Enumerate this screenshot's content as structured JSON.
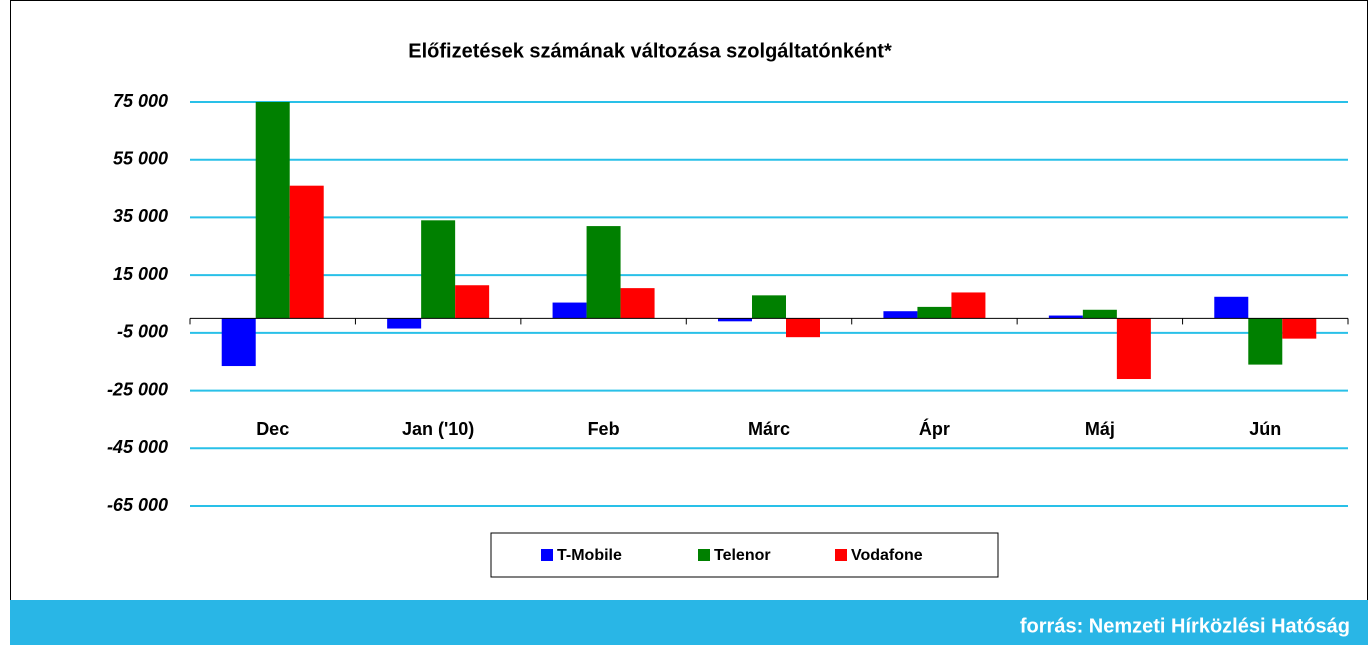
{
  "chart_data": {
    "type": "bar",
    "title": "Előfizetések számának változása szolgáltatónként*",
    "source": "forrás: Nemzeti Hírközlési Hatóság",
    "categories": [
      "Dec",
      "Jan ('10)",
      "Feb",
      "Márc",
      "Ápr",
      "Máj",
      "Jún"
    ],
    "series": [
      {
        "name": "T-Mobile",
        "color": "#0000ff",
        "values": [
          -16500,
          -3500,
          5500,
          -1000,
          2500,
          1000,
          7500
        ]
      },
      {
        "name": "Telenor",
        "color": "#008000",
        "values": [
          75000,
          34000,
          32000,
          8000,
          4000,
          3000,
          -16000
        ]
      },
      {
        "name": "Vodafone",
        "color": "#ff0000",
        "values": [
          46000,
          11500,
          10500,
          -6500,
          9000,
          -21000,
          -7000
        ]
      }
    ],
    "ylim": [
      -65000,
      75000
    ],
    "yticks": [
      {
        "value": -65000,
        "label": "-65 000"
      },
      {
        "value": -45000,
        "label": "-45 000"
      },
      {
        "value": -25000,
        "label": "-25 000"
      },
      {
        "value": -5000,
        "label": "-5 000"
      },
      {
        "value": 15000,
        "label": "15 000"
      },
      {
        "value": 35000,
        "label": "35 000"
      },
      {
        "value": 55000,
        "label": "55 000"
      },
      {
        "value": 75000,
        "label": "75 000"
      }
    ],
    "grid": true,
    "legend": "bottom"
  }
}
